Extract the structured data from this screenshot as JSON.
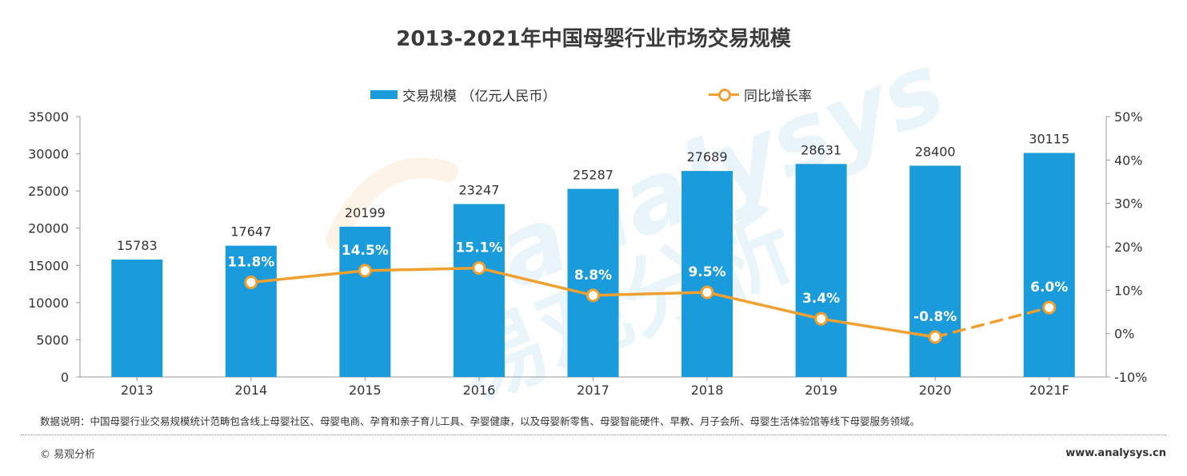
{
  "title": "2013-2021年中国母婴行业市场交易规模",
  "legend": {
    "bar_label": "交易规模 （亿元人民币）",
    "line_label": "同比增长率"
  },
  "colors": {
    "bar": "#1a9bdc",
    "line": "#f0a030"
  },
  "note": "数据说明：中国母婴行业交易规模统计范畴包含线上母婴社区、母婴电商、孕育和亲子育儿工具、孕婴健康，以及母婴新零售、母婴智能硬件、早教、月子会所、母婴生活体验馆等线下母婴服务领域。",
  "footer": {
    "copyright": "© 易观分析",
    "website": "www.analysys.cn"
  },
  "watermark": {
    "text_en": "analysys",
    "text_cn": "易观分析"
  },
  "chart_data": {
    "type": "bar",
    "categories": [
      "2013",
      "2014",
      "2015",
      "2016",
      "2017",
      "2018",
      "2019",
      "2020",
      "2021F"
    ],
    "series": [
      {
        "name": "交易规模 （亿元人民币）",
        "type": "bar",
        "axis": "left",
        "values": [
          15783,
          17647,
          20199,
          23247,
          25287,
          27689,
          28631,
          28400,
          30115
        ]
      },
      {
        "name": "同比增长率",
        "type": "line",
        "axis": "right",
        "values": [
          null,
          11.8,
          14.5,
          15.1,
          8.8,
          9.5,
          3.4,
          -0.8,
          6.0
        ],
        "labels": [
          "",
          "11.8%",
          "14.5%",
          "15.1%",
          "8.8%",
          "9.5%",
          "3.4%",
          "-0.8%",
          "6.0%"
        ],
        "dashed_last_segment": true
      }
    ],
    "y_left": {
      "min": 0,
      "max": 35000,
      "ticks": [
        0,
        5000,
        10000,
        15000,
        20000,
        25000,
        30000,
        35000
      ]
    },
    "y_right": {
      "min": -10,
      "max": 50,
      "ticks": [
        "-10%",
        "0%",
        "10%",
        "20%",
        "30%",
        "40%",
        "50%"
      ],
      "tick_values": [
        -10,
        0,
        10,
        20,
        30,
        40,
        50
      ]
    },
    "legend_position": "top-center",
    "grid": false
  }
}
